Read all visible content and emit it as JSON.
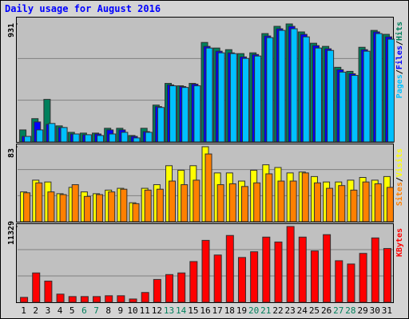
{
  "chart_data": {
    "type": "bar",
    "title": "Daily usage for August 2016",
    "categories": [
      "1",
      "2",
      "3",
      "4",
      "5",
      "6",
      "7",
      "8",
      "9",
      "10",
      "11",
      "12",
      "13",
      "14",
      "15",
      "16",
      "17",
      "18",
      "19",
      "20",
      "21",
      "22",
      "23",
      "24",
      "25",
      "26",
      "27",
      "28",
      "29",
      "30",
      "31"
    ],
    "category_colors": [
      "#000000",
      "#000000",
      "#000000",
      "#000000",
      "#000000",
      "#00805c",
      "#00805c",
      "#000000",
      "#000000",
      "#000000",
      "#000000",
      "#000000",
      "#00805c",
      "#00805c",
      "#000000",
      "#000000",
      "#000000",
      "#000000",
      "#000000",
      "#00805c",
      "#00805c",
      "#000000",
      "#000000",
      "#000000",
      "#000000",
      "#000000",
      "#00805c",
      "#00805c",
      "#000000",
      "#000000",
      "#000000"
    ],
    "legend_separator": "/",
    "panels": [
      {
        "ylim": [
          0,
          931
        ],
        "yticks": [
          931
        ],
        "series": [
          {
            "name": "Hits",
            "color": "#00805c",
            "values": [
              95,
              184,
              336,
              127,
              76,
              70,
              70,
              108,
              108,
              51,
              108,
              291,
              462,
              443,
              462,
              785,
              741,
              728,
              697,
              703,
              855,
              912,
              931,
              868,
              779,
              754,
              589,
              557,
              747,
              880,
              849
            ]
          },
          {
            "name": "Files",
            "color": "#0000ff",
            "values": [
              44,
              158,
              139,
              114,
              63,
              57,
              63,
              95,
              95,
              44,
              82,
              279,
              450,
              437,
              456,
              754,
              716,
              703,
              671,
              690,
              836,
              893,
              912,
              849,
              760,
              735,
              570,
              538,
              728,
              868,
              829
            ]
          },
          {
            "name": "Pages",
            "color": "#00c0ff",
            "values": [
              44,
              95,
              146,
              114,
              63,
              57,
              51,
              63,
              76,
              32,
              76,
              272,
              443,
              430,
              443,
              741,
              703,
              697,
              659,
              678,
              823,
              880,
              893,
              829,
              741,
              722,
              551,
              525,
              716,
              855,
              811
            ]
          }
        ]
      },
      {
        "ylim": [
          0,
          83
        ],
        "yticks": [
          83
        ],
        "series": [
          {
            "name": "Visits",
            "color": "#ffff00",
            "values": [
              33,
              46,
              44,
              31,
              38,
              33,
              31,
              35,
              37,
              21,
              37,
              41,
              62,
              57,
              62,
              83,
              54,
              54,
              45,
              57,
              63,
              60,
              54,
              55,
              50,
              44,
              44,
              46,
              49,
              46,
              50
            ]
          },
          {
            "name": "Sites",
            "color": "#ff8000",
            "values": [
              32,
              43,
              33,
              30,
              41,
              28,
              30,
              33,
              36,
              20,
              35,
              36,
              45,
              41,
              46,
              75,
              41,
              42,
              39,
              43,
              53,
              45,
              45,
              54,
              43,
              37,
              40,
              35,
              44,
              42,
              38
            ]
          }
        ]
      },
      {
        "ylim": [
          0,
          11329
        ],
        "yticks": [
          11329
        ],
        "series": [
          {
            "name": "KBytes",
            "color": "#ff0000",
            "values": [
              731,
              4385,
              3167,
              1218,
              853,
              853,
              853,
              975,
              975,
              487,
              1462,
              3411,
              4142,
              4385,
              6090,
              9257,
              7065,
              9988,
              6699,
              7552,
              9745,
              9014,
              11329,
              9745,
              7674,
              10110,
              6212,
              5725,
              7309,
              9623,
              8040
            ]
          }
        ]
      }
    ]
  }
}
